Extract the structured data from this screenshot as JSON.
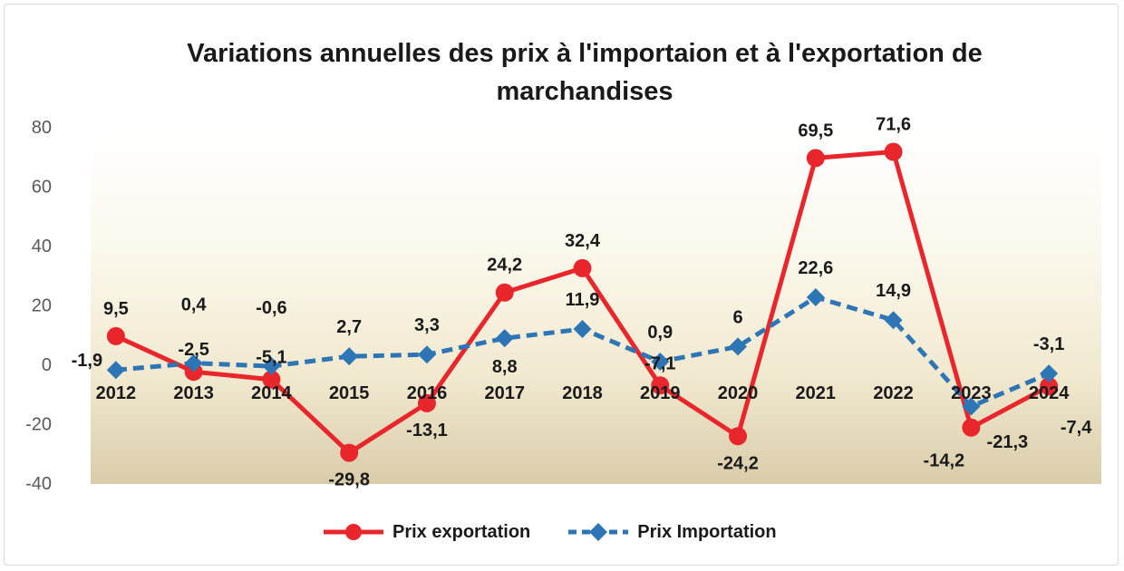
{
  "chart_data": {
    "type": "line",
    "title": "Variations annuelles des prix à l'importaion et à l'exportation de marchandises",
    "xlabel": "",
    "ylabel": "",
    "categories": [
      "2012",
      "2013",
      "2014",
      "2015",
      "2016",
      "2017",
      "2018",
      "2019",
      "2020",
      "2021",
      "2022",
      "2023",
      "2024"
    ],
    "ylim": [
      -40,
      80
    ],
    "yticks": [
      "80",
      "60",
      "40",
      "20",
      "0",
      "-20",
      "-40"
    ],
    "series": [
      {
        "name": "Prix exportation",
        "color": "#e8262b",
        "marker": "circle",
        "values": [
          9.5,
          -2.5,
          -5.1,
          -29.8,
          -13.1,
          24.2,
          32.4,
          -7.1,
          -24.2,
          69.5,
          71.6,
          -21.3,
          -7.4
        ],
        "labels": [
          "9,5",
          "-2,5",
          "-5,1",
          "-29,8",
          "-13,1",
          "24,2",
          "32,4",
          "-7,1",
          "-24,2",
          "69,5",
          "71,6",
          "-21,3",
          "-7,4"
        ]
      },
      {
        "name": "Prix Importation",
        "color": "#2e75b6",
        "marker": "diamond",
        "values": [
          -1.9,
          0.4,
          -0.6,
          2.7,
          3.3,
          8.8,
          11.9,
          0.9,
          6,
          22.6,
          14.9,
          -14.2,
          -3.1
        ],
        "labels": [
          "-1,9",
          "0,4",
          "-0,6",
          "2,7",
          "3,3",
          "8,8",
          "11,9",
          "0,9",
          "6",
          "22,6",
          "14,9",
          "-14,2",
          "-3,1"
        ]
      }
    ],
    "grid": false,
    "legend_position": "bottom"
  }
}
